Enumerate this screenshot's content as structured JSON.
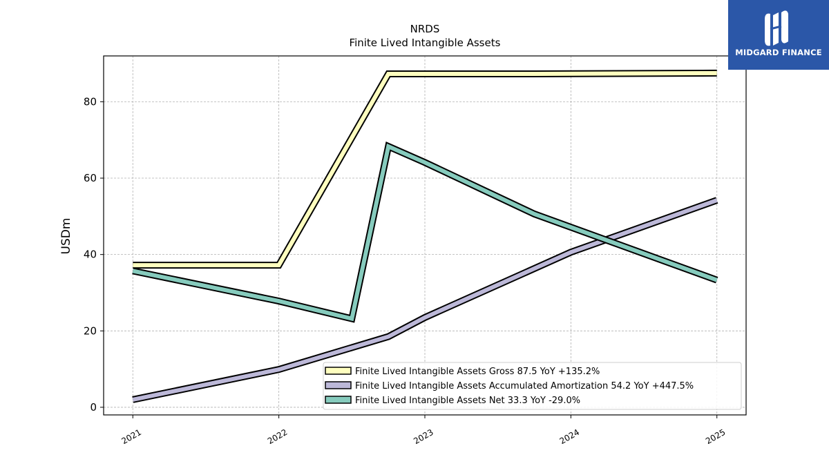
{
  "chart_data": {
    "type": "line",
    "title": "NRDS",
    "subtitle": "Finite Lived Intangible Assets",
    "ylabel": "USDm",
    "xlabel": "",
    "ylim": [
      -2,
      92
    ],
    "xlim": [
      2020.8,
      2025.2
    ],
    "yticks": [
      0,
      20,
      40,
      60,
      80
    ],
    "xticks": [
      2021,
      2022,
      2023,
      2024,
      2025
    ],
    "xtick_labels": [
      "2021",
      "2022",
      "2023",
      "2024",
      "2025"
    ],
    "grid": true,
    "legend_position": "lower-right",
    "series": [
      {
        "name": "Finite Lived Intangible Assets Gross",
        "legend_label": "Finite Lived Intangible Assets Gross  87.5 YoY +135.2%",
        "color": "#ffffbf",
        "x": [
          2021.0,
          2022.0,
          2022.75,
          2023.75,
          2025.0
        ],
        "y": [
          37.2,
          37.2,
          87.3,
          87.3,
          87.5
        ]
      },
      {
        "name": "Finite Lived Intangible Assets Accumulated Amortization",
        "legend_label": "Finite Lived Intangible Assets Accumulated Amortization  54.2 YoY +447.5%",
        "color": "#bcb8d8",
        "x": [
          2021.0,
          2022.0,
          2022.75,
          2023.0,
          2024.0,
          2025.0
        ],
        "y": [
          2.0,
          9.9,
          18.5,
          23.5,
          40.6,
          54.2
        ]
      },
      {
        "name": "Finite Lived Intangible Assets Net",
        "legend_label": "Finite Lived Intangible Assets Net  33.3 YoY -29.0%",
        "color": "#86cbbd",
        "x": [
          2021.0,
          2022.0,
          2022.5,
          2022.75,
          2023.0,
          2023.75,
          2025.0
        ],
        "y": [
          35.7,
          27.8,
          23.2,
          68.3,
          64.1,
          50.6,
          33.3
        ]
      }
    ]
  },
  "brand": {
    "name": "MIDGARD FINANCE",
    "color": "#2b57a8"
  }
}
